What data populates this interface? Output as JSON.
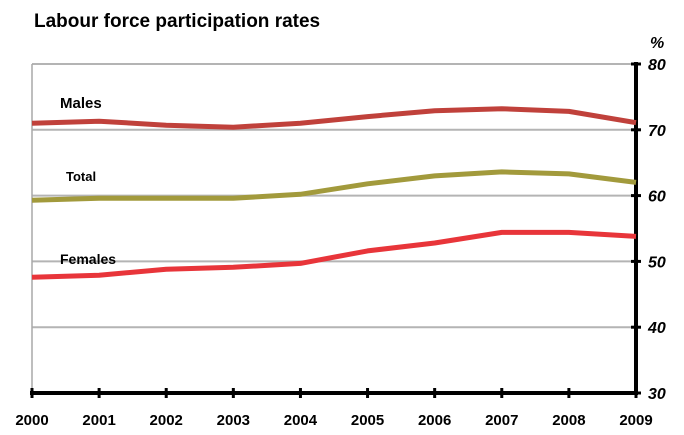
{
  "chart_data": {
    "type": "line",
    "title": "Labour force participation rates",
    "ylabel": "%",
    "xlabel": "",
    "x": [
      "2000",
      "2001",
      "2002",
      "2003",
      "2004",
      "2005",
      "2006",
      "2007",
      "2008",
      "2009"
    ],
    "ylim": [
      30,
      80
    ],
    "yticks": [
      "30",
      "40",
      "50",
      "60",
      "70",
      "80"
    ],
    "grid": true,
    "series": [
      {
        "name": "Males",
        "color": "#c0413b",
        "values": [
          71.0,
          71.3,
          70.7,
          70.4,
          71.0,
          72.0,
          72.9,
          73.2,
          72.8,
          71.1
        ]
      },
      {
        "name": "Total",
        "color": "#a29a3c",
        "values": [
          59.3,
          59.6,
          59.6,
          59.6,
          60.2,
          61.8,
          63.0,
          63.6,
          63.3,
          62.0
        ]
      },
      {
        "name": "Females",
        "color": "#e8353a",
        "values": [
          47.6,
          47.9,
          48.8,
          49.1,
          49.7,
          51.6,
          52.8,
          54.4,
          54.4,
          53.8
        ]
      }
    ]
  }
}
